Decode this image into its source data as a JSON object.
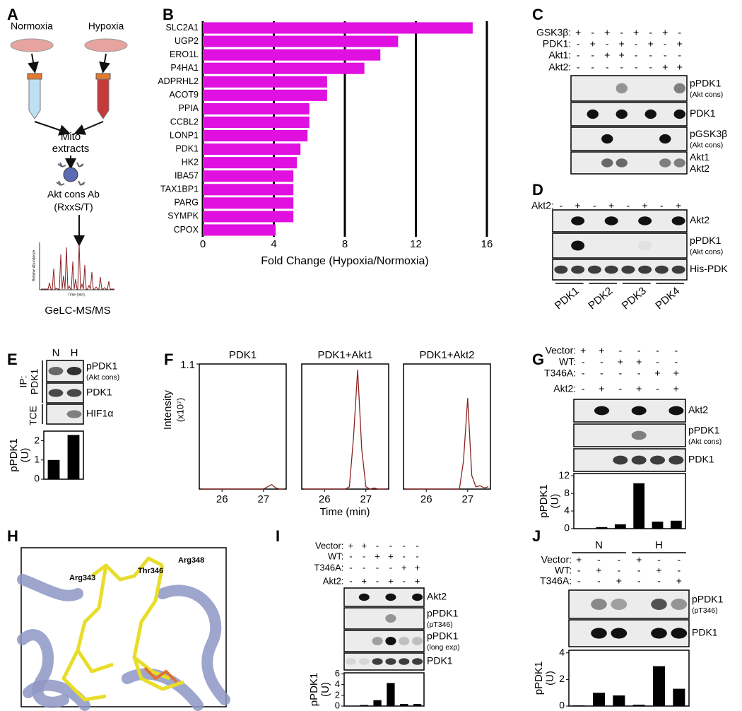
{
  "panel_labels": [
    "A",
    "B",
    "C",
    "D",
    "E",
    "F",
    "G",
    "H",
    "I",
    "J"
  ],
  "panel_a": {
    "conditions": [
      "Normoxia",
      "Hypoxia"
    ],
    "step_2": [
      "Mito",
      "extracts"
    ],
    "antibody": [
      "Akt cons Ab",
      "(RxxS/T)"
    ],
    "spectrum_y_label": "Relative Abundance",
    "spectrum_x_label": "Time (min)",
    "method": "GeLC-MS/MS"
  },
  "chart_data": [
    {
      "type": "bar",
      "orientation": "horizontal",
      "categories": [
        "SLC2A1",
        "UGP2",
        "ERO1L",
        "P4HA1",
        "ADPRHL2",
        "ACOT9",
        "PPIA",
        "CCBL2",
        "LONP1",
        "PDK1",
        "HK2",
        "IBA57",
        "TAX1BP1",
        "PARG",
        "SYMPK",
        "CPOX"
      ],
      "values": [
        15.2,
        11,
        10,
        9.1,
        7,
        7,
        6,
        6,
        5.9,
        5.5,
        5.3,
        5.1,
        5.1,
        5.1,
        5.1,
        4.1
      ],
      "color": "#e010e0",
      "xlim": [
        0,
        16
      ],
      "xticks": [
        0,
        4,
        8,
        12,
        16
      ],
      "x_label": "Fold Change (Hypoxia/Normoxia)",
      "grid": true
    },
    {
      "type": "bar",
      "values": [
        1,
        2.3
      ],
      "color": "#000000",
      "ylim": [
        0,
        2.5
      ],
      "yticks": [
        0,
        1,
        2
      ],
      "y_label": "pPDK1",
      "y_label_unit": "(U)"
    },
    {
      "type": "line",
      "x": [
        25.5,
        25.6,
        25.7,
        25.8,
        25.9,
        26,
        26.1,
        26.2,
        26.3,
        26.4,
        26.5,
        26.6,
        26.7,
        26.8,
        26.9,
        27,
        27.1,
        27.2,
        27.3,
        27.4,
        27.5
      ],
      "series": [
        {
          "name": "PDK1",
          "color": "#8b2323",
          "values": [
            0,
            0,
            0,
            0,
            0,
            0,
            0,
            0,
            0,
            0,
            0,
            0,
            0,
            0,
            0,
            0,
            0.02,
            0.04,
            0.01,
            0,
            0
          ]
        },
        {
          "name": "PDK1+Akt1",
          "color": "#8b2323",
          "values": [
            0,
            0,
            0,
            0,
            0,
            0,
            0,
            0,
            0,
            0,
            0,
            0.02,
            0.45,
            1.05,
            0.35,
            0.02,
            0,
            0.01,
            0,
            0,
            0
          ]
        },
        {
          "name": "PDK1+Akt2",
          "color": "#8b2323",
          "values": [
            0,
            0,
            0,
            0,
            0,
            0,
            0,
            0,
            0,
            0,
            0,
            0,
            0,
            0,
            0.25,
            0.8,
            0.12,
            0.02,
            0.03,
            0.01,
            0.02
          ]
        }
      ],
      "xlim": [
        25.45,
        27.55
      ],
      "xticks": [
        26,
        27
      ],
      "ylim": [
        0,
        1.1
      ],
      "yticks": [
        1.1
      ],
      "x_label": "Time (min)",
      "y_label": "Intensity",
      "y_label_unit": "(x10⁷)"
    },
    {
      "type": "bar",
      "values": [
        0.05,
        0.35,
        1,
        10.3,
        1.6,
        1.8
      ],
      "color": "#000000",
      "ylim": [
        0,
        12.5
      ],
      "yticks": [
        0,
        4,
        8,
        12
      ],
      "y_label": "pPDK1",
      "y_label_unit": "(U)"
    },
    {
      "type": "bar",
      "values": [
        0.05,
        0.2,
        1.1,
        4.3,
        0.4,
        0.4
      ],
      "color": "#000000",
      "ylim": [
        0,
        6.2
      ],
      "yticks": [
        0,
        2,
        4,
        6
      ],
      "y_label": "pPDK1",
      "y_label_unit": "(U)"
    },
    {
      "type": "bar",
      "values": [
        0.05,
        1,
        0.8,
        0.1,
        3,
        1.3
      ],
      "color": "#000000",
      "ylim": [
        0,
        4.2
      ],
      "yticks": [
        0,
        2,
        4
      ],
      "y_label": "pPDK1",
      "y_label_unit": "(U)"
    }
  ],
  "panel_c": {
    "conditions": [
      {
        "label": "GSK3β:",
        "signs": [
          "+",
          "-",
          "+",
          "-",
          "+",
          "-",
          "+",
          "-"
        ]
      },
      {
        "label": "PDK1:",
        "signs": [
          "-",
          "+",
          "-",
          "+",
          "-",
          "+",
          "-",
          "+"
        ]
      },
      {
        "label": "Akt1:",
        "signs": [
          "-",
          "-",
          "+",
          "+",
          "-",
          "-",
          "-",
          "-"
        ]
      },
      {
        "label": "Akt2:",
        "signs": [
          "-",
          "-",
          "-",
          "-",
          "-",
          "-",
          "+",
          "+"
        ]
      }
    ],
    "rows": [
      {
        "label": "pPDK1",
        "note": "(Akt cons)"
      },
      {
        "label": "PDK1"
      },
      {
        "label": "pGSK3β",
        "note": "(Akt cons)"
      },
      {
        "label": "Akt1",
        "label_2": "Akt2"
      }
    ]
  },
  "panel_d": {
    "conditions": [
      {
        "label": "Akt2:",
        "signs": [
          "-",
          "+",
          "-",
          "+",
          "-",
          "+",
          "-",
          "+"
        ]
      }
    ],
    "rows": [
      {
        "label": "Akt2"
      },
      {
        "label": "pPDK1",
        "note": "(Akt cons)"
      },
      {
        "label": "His-PDK"
      }
    ],
    "lane_groups": [
      "PDK1",
      "PDK2",
      "PDK3",
      "PDK4"
    ]
  },
  "panel_e": {
    "lanes": [
      "N",
      "H"
    ],
    "side_labels": [
      "IP:",
      "PDK1",
      "TCE"
    ],
    "rows": [
      {
        "label": "pPDK1",
        "note": "(Akt cons)"
      },
      {
        "label": "PDK1"
      },
      {
        "label": "HIF1α"
      }
    ]
  },
  "panel_g": {
    "conditions": [
      {
        "label": "Vector:",
        "signs": [
          "+",
          "+",
          "-",
          "-",
          "-",
          "-"
        ]
      },
      {
        "label": "WT:",
        "signs": [
          "-",
          "-",
          "+",
          "+",
          "-",
          "-"
        ]
      },
      {
        "label": "T346A:",
        "signs": [
          "-",
          "-",
          "-",
          "-",
          "+",
          "+"
        ]
      },
      {
        "label": "Akt2:",
        "signs": [
          "-",
          "+",
          "-",
          "+",
          "-",
          "+"
        ]
      }
    ],
    "rows": [
      {
        "label": "Akt2"
      },
      {
        "label": "pPDK1",
        "note": "(Akt cons)"
      },
      {
        "label": "PDK1"
      }
    ]
  },
  "panel_h": {
    "residues": [
      "Arg343",
      "Thr346",
      "Arg348"
    ]
  },
  "panel_i": {
    "conditions": [
      {
        "label": "Vector:",
        "signs": [
          "+",
          "+",
          "-",
          "-",
          "-",
          "-"
        ]
      },
      {
        "label": "WT:",
        "signs": [
          "-",
          "-",
          "+",
          "+",
          "-",
          "-"
        ]
      },
      {
        "label": "T346A:",
        "signs": [
          "-",
          "-",
          "-",
          "-",
          "+",
          "+"
        ]
      },
      {
        "label": "Akt2:",
        "signs": [
          "-",
          "+",
          "-",
          "+",
          "-",
          "+"
        ]
      }
    ],
    "rows": [
      {
        "label": "Akt2"
      },
      {
        "label": "pPDK1",
        "note": "(pT346)"
      },
      {
        "label": "pPDK1",
        "note": "(long exp)"
      },
      {
        "label": "PDK1"
      }
    ]
  },
  "panel_j": {
    "groups": [
      "N",
      "H"
    ],
    "conditions": [
      {
        "label": "Vector:",
        "signs": [
          "+",
          "-",
          "-",
          "+",
          "-",
          "-"
        ]
      },
      {
        "label": "WT:",
        "signs": [
          "-",
          "+",
          "-",
          "-",
          "+",
          "-"
        ]
      },
      {
        "label": "T346A:",
        "signs": [
          "-",
          "-",
          "+",
          "-",
          "-",
          "+"
        ]
      }
    ],
    "rows": [
      {
        "label": "pPDK1",
        "note": "(pT346)"
      },
      {
        "label": "PDK1"
      }
    ]
  }
}
